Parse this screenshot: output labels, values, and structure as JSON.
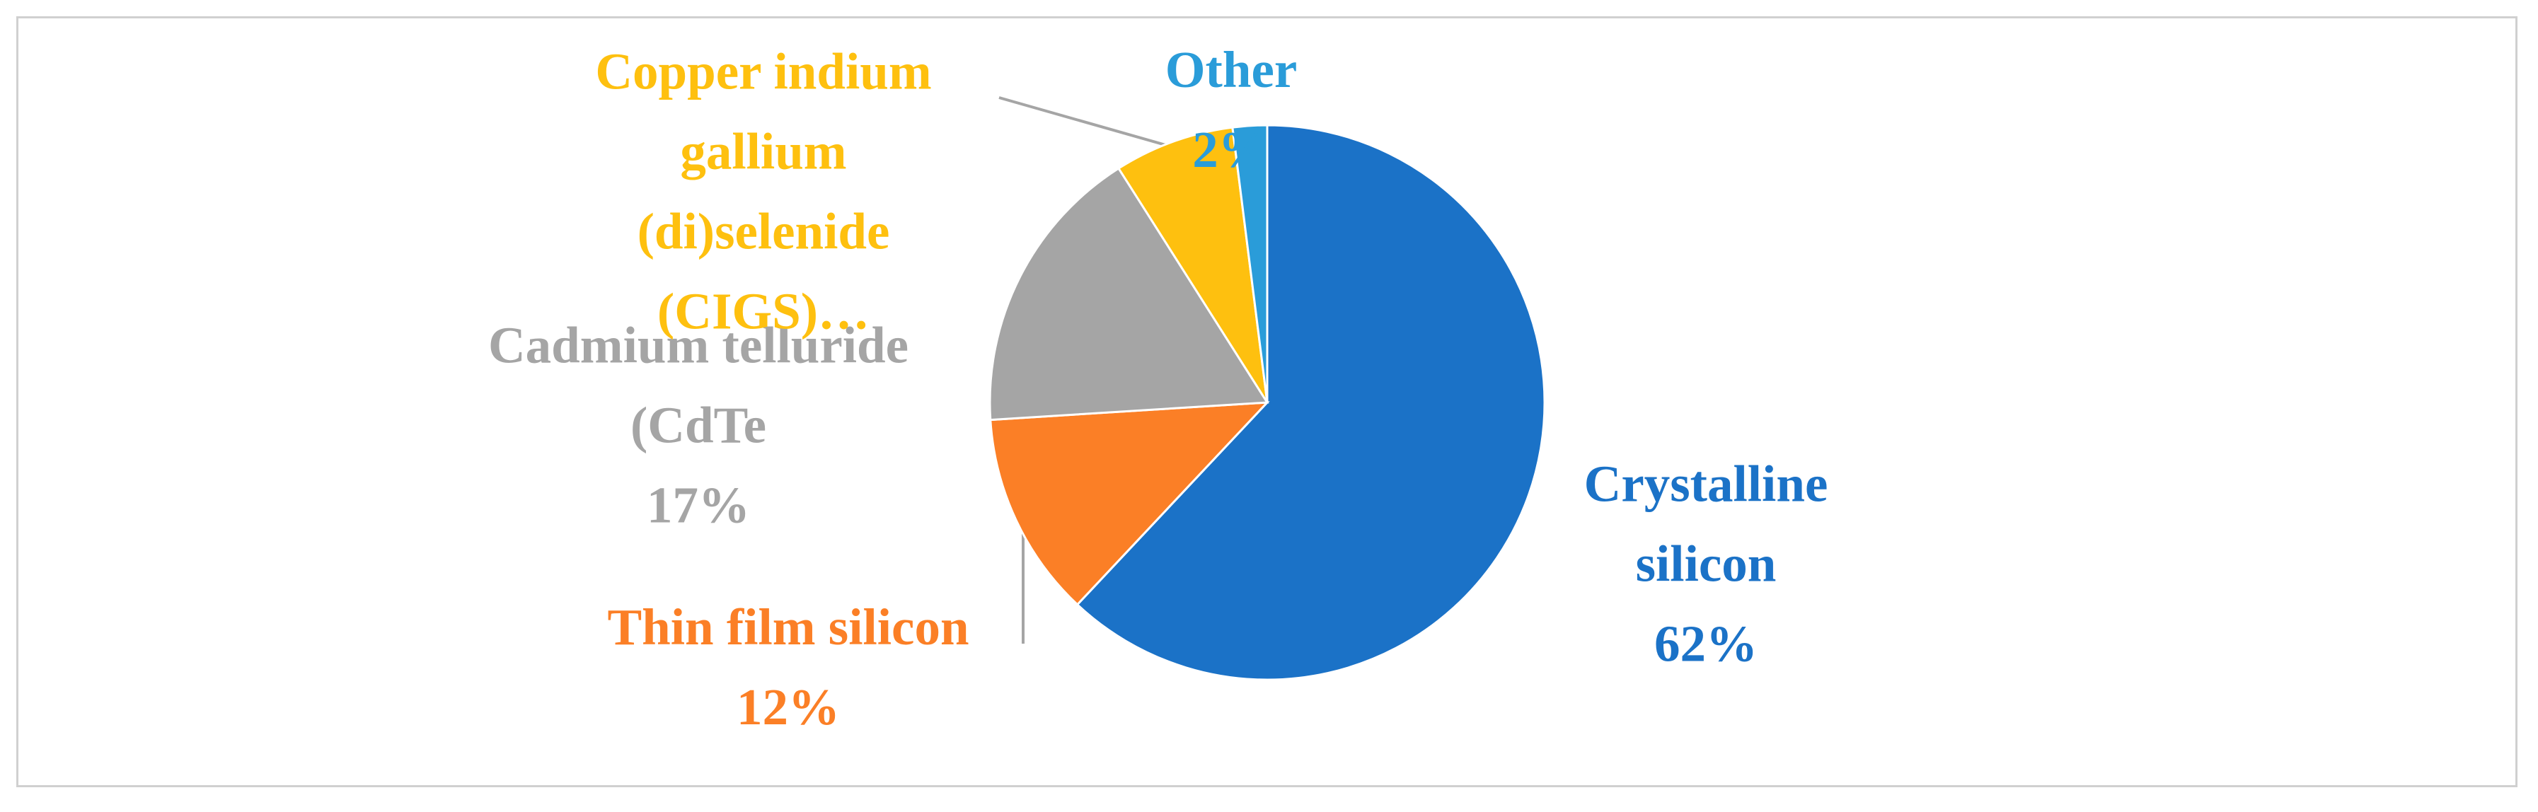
{
  "chart_data": {
    "type": "pie",
    "categories": [
      "Crystalline silicon",
      "Thin film silicon",
      "Cadmium telluride (CdTe",
      "Copper indium gallium (di)selenide (CIGS)…",
      "Other"
    ],
    "values": [
      62,
      12,
      17,
      7,
      2
    ],
    "value_labels": [
      "62%",
      "12%",
      "17%",
      null,
      "2%"
    ],
    "colors": [
      "#1b72c7",
      "#fb7f26",
      "#a5a5a5",
      "#fec00f",
      "#2a9cd9"
    ]
  }
}
